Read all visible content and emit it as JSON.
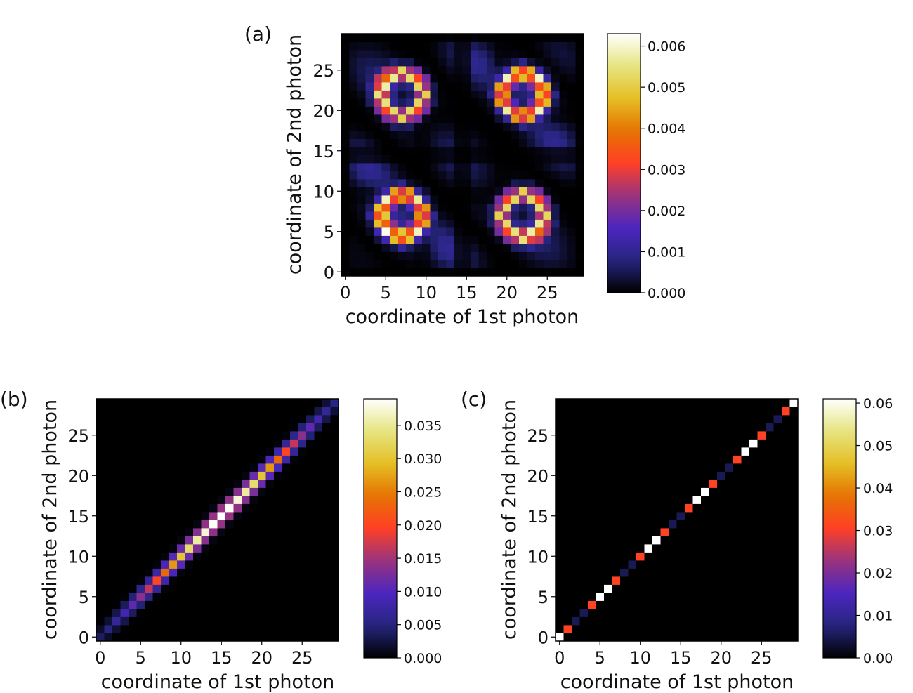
{
  "chart_data": [
    {
      "type": "heatmap",
      "panel_label": "(a)",
      "xlabel": "coordinate of 1st photon",
      "ylabel": "coordinate of 2nd photon",
      "n": 30,
      "xticks": [
        "0",
        "5",
        "10",
        "15",
        "20",
        "25"
      ],
      "yticks": [
        "0",
        "5",
        "10",
        "15",
        "20",
        "25"
      ],
      "vmin": 0.0,
      "vmax": 0.0063,
      "colorbar_ticks": [
        0.0,
        0.001,
        0.002,
        0.003,
        0.004,
        0.005,
        0.006
      ],
      "colorbar_labels": [
        "0.000",
        "0.001",
        "0.002",
        "0.003",
        "0.004",
        "0.005",
        "0.006"
      ],
      "colormap": "CMRmap",
      "pattern": "four-fold symmetric interference pattern; bright ring clusters centered near (7,7),(7,22),(22,7),(22,22); dark bands near coordinates 0, 14-15, 29",
      "peak_value": 0.0063
    },
    {
      "type": "heatmap",
      "panel_label": "(b)",
      "xlabel": "coordinate of 1st photon",
      "ylabel": "coordinate of 2nd photon",
      "n": 30,
      "xticks": [
        "0",
        "5",
        "10",
        "15",
        "20",
        "25"
      ],
      "yticks": [
        "0",
        "5",
        "10",
        "15",
        "20",
        "25"
      ],
      "vmin": 0.0,
      "vmax": 0.039,
      "colorbar_ticks": [
        0.0,
        0.005,
        0.01,
        0.015,
        0.02,
        0.025,
        0.03,
        0.035
      ],
      "colorbar_labels": [
        "0.000",
        "0.005",
        "0.010",
        "0.015",
        "0.020",
        "0.025",
        "0.030",
        "0.035"
      ],
      "colormap": "CMRmap",
      "pattern": "narrow band along main diagonal, maximum near coordinate 14-16 (~0.039), decaying toward ends",
      "peak_value": 0.039
    },
    {
      "type": "heatmap",
      "panel_label": "(c)",
      "xlabel": "coordinate of 1st photon",
      "ylabel": "coordinate of 2nd photon",
      "n": 30,
      "xticks": [
        "0",
        "5",
        "10",
        "15",
        "20",
        "25"
      ],
      "yticks": [
        "0",
        "5",
        "10",
        "15",
        "20",
        "25"
      ],
      "vmin": 0.0,
      "vmax": 0.061,
      "colorbar_ticks": [
        0.0,
        0.01,
        0.02,
        0.03,
        0.04,
        0.05,
        0.06
      ],
      "colorbar_labels": [
        "0.00",
        "0.01",
        "0.02",
        "0.03",
        "0.04",
        "0.05",
        "0.06"
      ],
      "colormap": "CMRmap",
      "pattern": "single-pixel diagonal with period-3 modulation: diagonal sites 0,5,6,11,12,17,18,23,24,29 ~0.061; sites 1,4,7,10,13,16,19,22,25,28 ~0.031; others ~0.005",
      "diagonal_values": [
        0.061,
        0.031,
        0.005,
        0.005,
        0.031,
        0.061,
        0.061,
        0.031,
        0.005,
        0.005,
        0.031,
        0.061,
        0.061,
        0.031,
        0.005,
        0.005,
        0.031,
        0.061,
        0.061,
        0.031,
        0.005,
        0.005,
        0.031,
        0.061,
        0.061,
        0.031,
        0.005,
        0.005,
        0.031,
        0.061
      ]
    }
  ]
}
